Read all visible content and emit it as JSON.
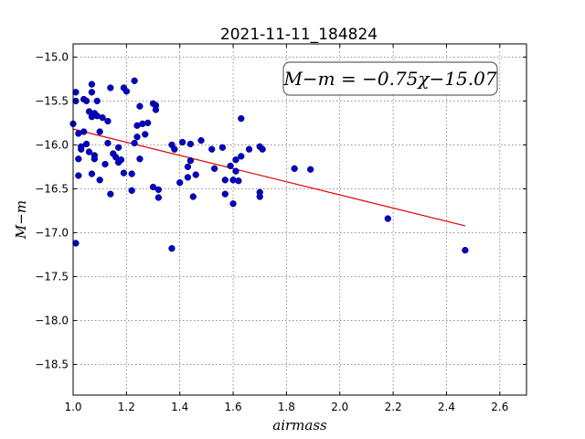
{
  "chart_data": {
    "type": "scatter",
    "title": "2021-11-11_184824",
    "xlabel": "airmass",
    "ylabel": "M−m",
    "xlim": [
      1.0,
      2.7
    ],
    "ylim": [
      -18.85,
      -14.85
    ],
    "y_inverted": true,
    "grid": true,
    "xticks": [
      "1.0",
      "1.2",
      "1.4",
      "1.6",
      "1.8",
      "2.0",
      "2.2",
      "2.4",
      "2.6"
    ],
    "yticks": [
      "−15.0",
      "−15.5",
      "−16.0",
      "−16.5",
      "−17.0",
      "−17.5",
      "−18.0",
      "−18.5"
    ],
    "annotation": "M−m = −0.75χ−15.07",
    "marker_color": "#0000cc",
    "fit_color": "#dd0000",
    "fit": {
      "slope": -0.75,
      "intercept": -15.07,
      "x_range": [
        1.0,
        2.47
      ]
    },
    "series": [
      {
        "points": [
          [
            1.0,
            -15.76
          ],
          [
            1.01,
            -15.5
          ],
          [
            1.01,
            -15.4
          ],
          [
            1.01,
            -17.12
          ],
          [
            1.02,
            -15.87
          ],
          [
            1.02,
            -16.16
          ],
          [
            1.02,
            -16.35
          ],
          [
            1.03,
            -16.05
          ],
          [
            1.03,
            -16.02
          ],
          [
            1.04,
            -15.48
          ],
          [
            1.04,
            -15.85
          ],
          [
            1.05,
            -15.5
          ],
          [
            1.05,
            -15.99
          ],
          [
            1.06,
            -15.62
          ],
          [
            1.06,
            -16.08
          ],
          [
            1.07,
            -15.31
          ],
          [
            1.07,
            -15.4
          ],
          [
            1.07,
            -15.68
          ],
          [
            1.07,
            -16.33
          ],
          [
            1.08,
            -16.12
          ],
          [
            1.08,
            -16.16
          ],
          [
            1.08,
            -15.64
          ],
          [
            1.09,
            -15.5
          ],
          [
            1.09,
            -15.67
          ],
          [
            1.1,
            -15.85
          ],
          [
            1.1,
            -16.4
          ],
          [
            1.11,
            -15.69
          ],
          [
            1.12,
            -16.22
          ],
          [
            1.13,
            -15.98
          ],
          [
            1.13,
            -15.73
          ],
          [
            1.14,
            -16.56
          ],
          [
            1.14,
            -15.35
          ],
          [
            1.15,
            -16.1
          ],
          [
            1.16,
            -16.14
          ],
          [
            1.17,
            -16.03
          ],
          [
            1.17,
            -16.2
          ],
          [
            1.18,
            -16.17
          ],
          [
            1.19,
            -16.32
          ],
          [
            1.19,
            -15.35
          ],
          [
            1.2,
            -15.39
          ],
          [
            1.22,
            -16.52
          ],
          [
            1.22,
            -16.33
          ],
          [
            1.23,
            -15.98
          ],
          [
            1.23,
            -15.27
          ],
          [
            1.24,
            -15.78
          ],
          [
            1.24,
            -15.91
          ],
          [
            1.25,
            -16.16
          ],
          [
            1.25,
            -15.56
          ],
          [
            1.26,
            -15.76
          ],
          [
            1.27,
            -15.88
          ],
          [
            1.28,
            -15.75
          ],
          [
            1.3,
            -15.53
          ],
          [
            1.3,
            -16.48
          ],
          [
            1.31,
            -15.55
          ],
          [
            1.31,
            -15.6
          ],
          [
            1.32,
            -16.6
          ],
          [
            1.32,
            -16.51
          ],
          [
            1.37,
            -17.18
          ],
          [
            1.37,
            -16.0
          ],
          [
            1.38,
            -16.05
          ],
          [
            1.4,
            -16.43
          ],
          [
            1.41,
            -15.97
          ],
          [
            1.43,
            -16.25
          ],
          [
            1.43,
            -16.37
          ],
          [
            1.44,
            -16.18
          ],
          [
            1.44,
            -15.99
          ],
          [
            1.45,
            -16.59
          ],
          [
            1.46,
            -16.34
          ],
          [
            1.48,
            -15.95
          ],
          [
            1.52,
            -16.05
          ],
          [
            1.53,
            -16.27
          ],
          [
            1.56,
            -16.03
          ],
          [
            1.57,
            -16.4
          ],
          [
            1.57,
            -16.56
          ],
          [
            1.59,
            -16.24
          ],
          [
            1.6,
            -16.4
          ],
          [
            1.6,
            -16.67
          ],
          [
            1.61,
            -16.3
          ],
          [
            1.61,
            -16.17
          ],
          [
            1.62,
            -16.41
          ],
          [
            1.63,
            -16.13
          ],
          [
            1.63,
            -15.7
          ],
          [
            1.66,
            -16.05
          ],
          [
            1.7,
            -16.02
          ],
          [
            1.7,
            -16.54
          ],
          [
            1.7,
            -16.59
          ],
          [
            1.71,
            -16.05
          ],
          [
            1.83,
            -16.27
          ],
          [
            1.89,
            -16.28
          ],
          [
            2.18,
            -16.84
          ],
          [
            2.47,
            -17.2
          ]
        ]
      }
    ]
  }
}
